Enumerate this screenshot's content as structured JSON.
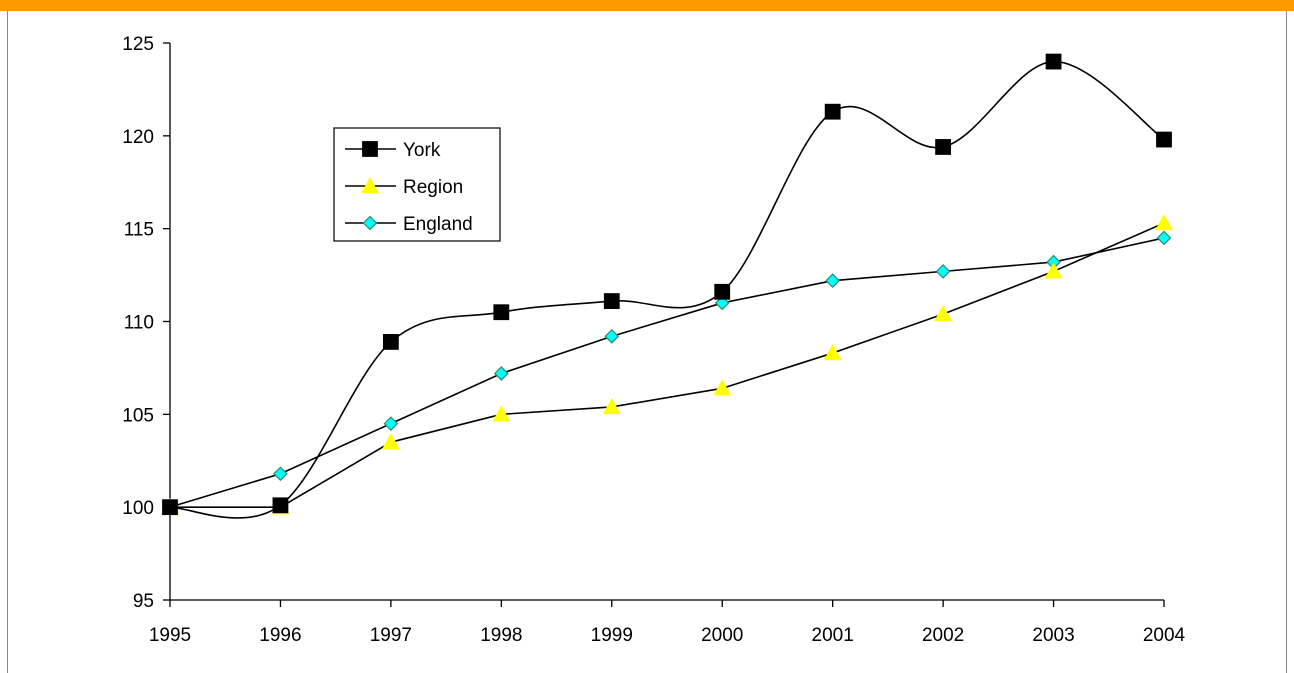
{
  "colors": {
    "top_bar": "#FF9900",
    "york_line": "#000000",
    "york_marker": "#000000",
    "region_line": "#000000",
    "region_marker": "#FFFF00",
    "england_line": "#000000",
    "england_marker": "#00FFFF"
  },
  "chart_data": {
    "type": "line",
    "title": "",
    "xlabel": "",
    "ylabel": "",
    "categories": [
      "1995",
      "1996",
      "1997",
      "1998",
      "1999",
      "2000",
      "2001",
      "2002",
      "2003",
      "2004"
    ],
    "ylim": [
      95,
      125
    ],
    "yticks": [
      "95",
      "100",
      "105",
      "110",
      "115",
      "120",
      "125"
    ],
    "grid": false,
    "legend_position": "upper-left",
    "series": [
      {
        "name": "York",
        "marker": "square",
        "smooth": true,
        "values": [
          100,
          100.1,
          108.9,
          110.5,
          111.1,
          111.6,
          121.3,
          119.4,
          124.0,
          119.8
        ]
      },
      {
        "name": "Region",
        "marker": "triangle",
        "smooth": false,
        "values": [
          100,
          100,
          103.5,
          105.0,
          105.4,
          106.4,
          108.3,
          110.4,
          112.7,
          115.3
        ]
      },
      {
        "name": "England",
        "marker": "diamond",
        "smooth": false,
        "values": [
          100,
          101.8,
          104.5,
          107.2,
          109.2,
          111.0,
          112.2,
          112.7,
          113.2,
          114.5
        ]
      }
    ]
  }
}
